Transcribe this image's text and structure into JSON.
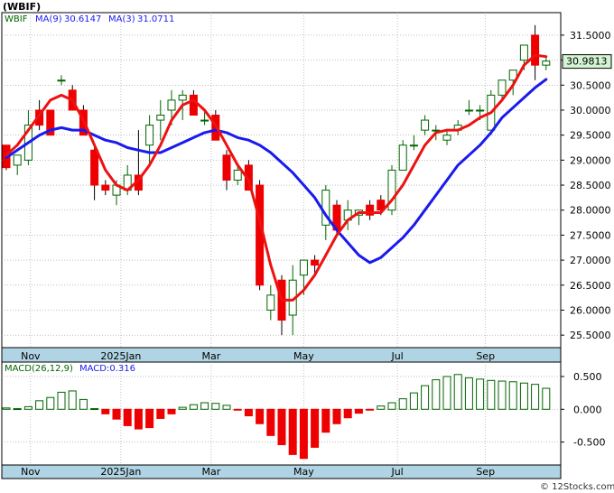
{
  "title": "(WBIF)",
  "copyright": "© 12Stocks.com",
  "colors": {
    "up": "#006400",
    "down": "#ee0000",
    "ma_fast": "#1a1aee",
    "ma_slow": "#ee1111",
    "axis_band": "#b0d4e3",
    "grid": "#999999",
    "last_price_bg": "#d4f5d4"
  },
  "chart_data": [
    {
      "type": "candlestick",
      "title": "",
      "symbol_label": "WBIF",
      "last_price": 30.9813,
      "last_price_label": "30.9813",
      "grid": true,
      "ylim": [
        25.25,
        31.95
      ],
      "yticks": [
        25.5,
        26.0,
        26.5,
        27.0,
        27.5,
        28.0,
        28.5,
        29.0,
        29.5,
        30.0,
        30.5,
        31.0,
        31.5
      ],
      "ytick_labels": [
        "25.5000",
        "26.0000",
        "26.5000",
        "27.0000",
        "27.5000",
        "28.0000",
        "28.5000",
        "29.0000",
        "29.5000",
        "30.0000",
        "30.5000",
        "31.0000",
        "31.5000"
      ],
      "xtick_labels": [
        "Nov",
        "2025Jan",
        "Mar",
        "May",
        "Jul",
        "Sep"
      ],
      "xtick_index": [
        2.2,
        10.4,
        18.6,
        27.0,
        35.5,
        43.5
      ],
      "candles": [
        [
          29.3,
          29.3,
          28.8,
          28.85
        ],
        [
          28.9,
          29.1,
          28.7,
          29.1
        ],
        [
          29.0,
          30.0,
          28.9,
          29.7
        ],
        [
          30.0,
          30.2,
          29.6,
          29.7
        ],
        [
          30.0,
          30.0,
          29.5,
          29.5
        ],
        [
          30.6,
          30.7,
          30.5,
          30.6
        ],
        [
          30.4,
          30.5,
          30.0,
          30.0
        ],
        [
          30.0,
          30.1,
          29.5,
          29.5
        ],
        [
          29.2,
          29.3,
          28.2,
          28.5
        ],
        [
          28.5,
          28.6,
          28.3,
          28.4
        ],
        [
          28.3,
          28.6,
          28.1,
          28.5
        ],
        [
          28.4,
          28.9,
          28.3,
          28.7
        ],
        [
          28.7,
          29.6,
          28.3,
          28.4
        ],
        [
          29.3,
          29.9,
          28.9,
          29.7
        ],
        [
          29.8,
          30.2,
          29.4,
          29.9
        ],
        [
          30.0,
          30.4,
          29.7,
          30.2
        ],
        [
          30.2,
          30.4,
          29.8,
          30.3
        ],
        [
          30.3,
          30.4,
          29.9,
          29.9
        ],
        [
          29.8,
          30.0,
          29.7,
          29.8
        ],
        [
          29.9,
          30.0,
          29.4,
          29.4
        ],
        [
          29.1,
          29.2,
          28.4,
          28.6
        ],
        [
          28.6,
          28.9,
          28.5,
          28.8
        ],
        [
          28.9,
          29.0,
          28.4,
          28.4
        ],
        [
          28.5,
          28.6,
          26.4,
          26.5
        ],
        [
          26.0,
          26.5,
          25.8,
          26.3
        ],
        [
          26.6,
          26.7,
          25.5,
          25.8
        ],
        [
          25.9,
          26.9,
          25.5,
          26.6
        ],
        [
          26.7,
          27.0,
          26.3,
          27.0
        ],
        [
          27.0,
          27.1,
          26.7,
          26.9
        ],
        [
          27.7,
          28.5,
          27.4,
          28.4
        ],
        [
          28.1,
          28.2,
          27.5,
          27.6
        ],
        [
          27.8,
          28.2,
          27.6,
          28.0
        ],
        [
          27.9,
          28.0,
          27.7,
          28.0
        ],
        [
          28.1,
          28.2,
          27.8,
          27.9
        ],
        [
          28.2,
          28.3,
          27.9,
          28.0
        ],
        [
          28.0,
          28.9,
          27.9,
          28.8
        ],
        [
          28.8,
          29.4,
          28.8,
          29.3
        ],
        [
          29.3,
          29.5,
          29.2,
          29.3
        ],
        [
          29.6,
          29.9,
          29.5,
          29.8
        ],
        [
          29.6,
          29.7,
          29.4,
          29.6
        ],
        [
          29.4,
          29.6,
          29.3,
          29.5
        ],
        [
          29.6,
          29.8,
          29.5,
          29.7
        ],
        [
          30.0,
          30.2,
          29.9,
          30.0
        ],
        [
          30.0,
          30.1,
          29.8,
          30.0
        ],
        [
          29.6,
          30.4,
          29.5,
          30.3
        ],
        [
          30.3,
          30.6,
          30.2,
          30.6
        ],
        [
          30.6,
          30.8,
          30.3,
          30.8
        ],
        [
          31.0,
          31.3,
          30.8,
          31.3
        ],
        [
          31.5,
          31.7,
          30.6,
          30.9
        ],
        [
          30.9,
          31.05,
          30.8,
          30.98
        ]
      ],
      "series": [
        {
          "name": "MA(9)",
          "label": "MA(9)",
          "value_label": "30.6147",
          "color": "#1a1aee",
          "start_index": 0,
          "values": [
            29.05,
            29.2,
            29.35,
            29.5,
            29.6,
            29.65,
            29.6,
            29.6,
            29.5,
            29.4,
            29.35,
            29.25,
            29.2,
            29.15,
            29.15,
            29.25,
            29.35,
            29.45,
            29.55,
            29.6,
            29.55,
            29.45,
            29.4,
            29.3,
            29.15,
            28.95,
            28.75,
            28.5,
            28.25,
            27.9,
            27.6,
            27.35,
            27.1,
            26.95,
            27.05,
            27.25,
            27.45,
            27.7,
            28.0,
            28.3,
            28.6,
            28.9,
            29.1,
            29.3,
            29.55,
            29.85,
            30.05,
            30.25,
            30.45,
            30.6147
          ]
        },
        {
          "name": "MA(3)",
          "label": "MA(3)",
          "value_label": "31.0711",
          "color": "#ee1111",
          "start_index": 0,
          "values": [
            29.1,
            29.3,
            29.6,
            29.9,
            30.2,
            30.3,
            30.2,
            29.8,
            29.3,
            28.8,
            28.5,
            28.4,
            28.6,
            28.9,
            29.3,
            29.8,
            30.1,
            30.2,
            30.0,
            29.7,
            29.3,
            28.9,
            28.6,
            27.8,
            26.9,
            26.2,
            26.2,
            26.4,
            26.7,
            27.1,
            27.5,
            27.8,
            27.95,
            27.95,
            27.95,
            28.2,
            28.5,
            28.9,
            29.3,
            29.55,
            29.6,
            29.6,
            29.7,
            29.85,
            29.95,
            30.2,
            30.5,
            30.9,
            31.1,
            31.0711
          ]
        }
      ]
    },
    {
      "type": "bar",
      "title": "",
      "label": "MACD(26,12,9)",
      "value_label": "MACD:0.316",
      "grid": true,
      "ylim": [
        -0.85,
        0.72
      ],
      "yticks": [
        -0.5,
        0.0,
        0.5
      ],
      "ytick_labels": [
        "-0.500",
        "0.000",
        "0.500"
      ],
      "xtick_labels": [
        "Nov",
        "2025Jan",
        "Mar",
        "May",
        "Jul",
        "Sep"
      ],
      "values": [
        0.02,
        0.01,
        0.04,
        0.13,
        0.18,
        0.26,
        0.28,
        0.15,
        0.01,
        -0.07,
        -0.15,
        -0.25,
        -0.3,
        -0.28,
        -0.14,
        -0.07,
        0.03,
        0.07,
        0.1,
        0.09,
        0.06,
        -0.01,
        -0.1,
        -0.22,
        -0.4,
        -0.54,
        -0.69,
        -0.75,
        -0.58,
        -0.35,
        -0.22,
        -0.13,
        -0.06,
        -0.01,
        0.05,
        0.1,
        0.16,
        0.25,
        0.36,
        0.45,
        0.5,
        0.53,
        0.48,
        0.46,
        0.44,
        0.43,
        0.42,
        0.4,
        0.38,
        0.32
      ]
    }
  ]
}
